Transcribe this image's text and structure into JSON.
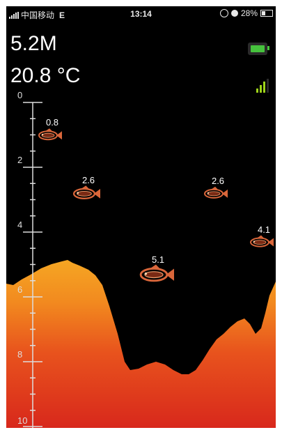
{
  "status_bar": {
    "carrier": "中国移动",
    "network": "E",
    "time": "13:14",
    "battery_percent": "28%"
  },
  "readouts": {
    "depth": "5.2M",
    "temperature": "20.8 °C"
  },
  "depth_axis": {
    "labels": [
      "0",
      "2",
      "4",
      "6",
      "8",
      "10"
    ]
  },
  "fish": [
    {
      "label": "0.8",
      "depth": 0.8
    },
    {
      "label": "2.6",
      "depth": 2.6
    },
    {
      "label": "2.6",
      "depth": 2.6
    },
    {
      "label": "4.1",
      "depth": 4.1
    },
    {
      "label": "5.1",
      "depth": 5.1
    }
  ],
  "colors": {
    "bottom_top": "#f5a623",
    "bottom_mid": "#e8531d",
    "bottom_deep": "#d8281c",
    "fish": "#d9663a",
    "battery": "#46c23d",
    "signal": "#9ed31a"
  },
  "icons": {
    "battery": "battery-charging-icon",
    "signal": "signal-strength-icon",
    "fish": "fish-icon"
  }
}
